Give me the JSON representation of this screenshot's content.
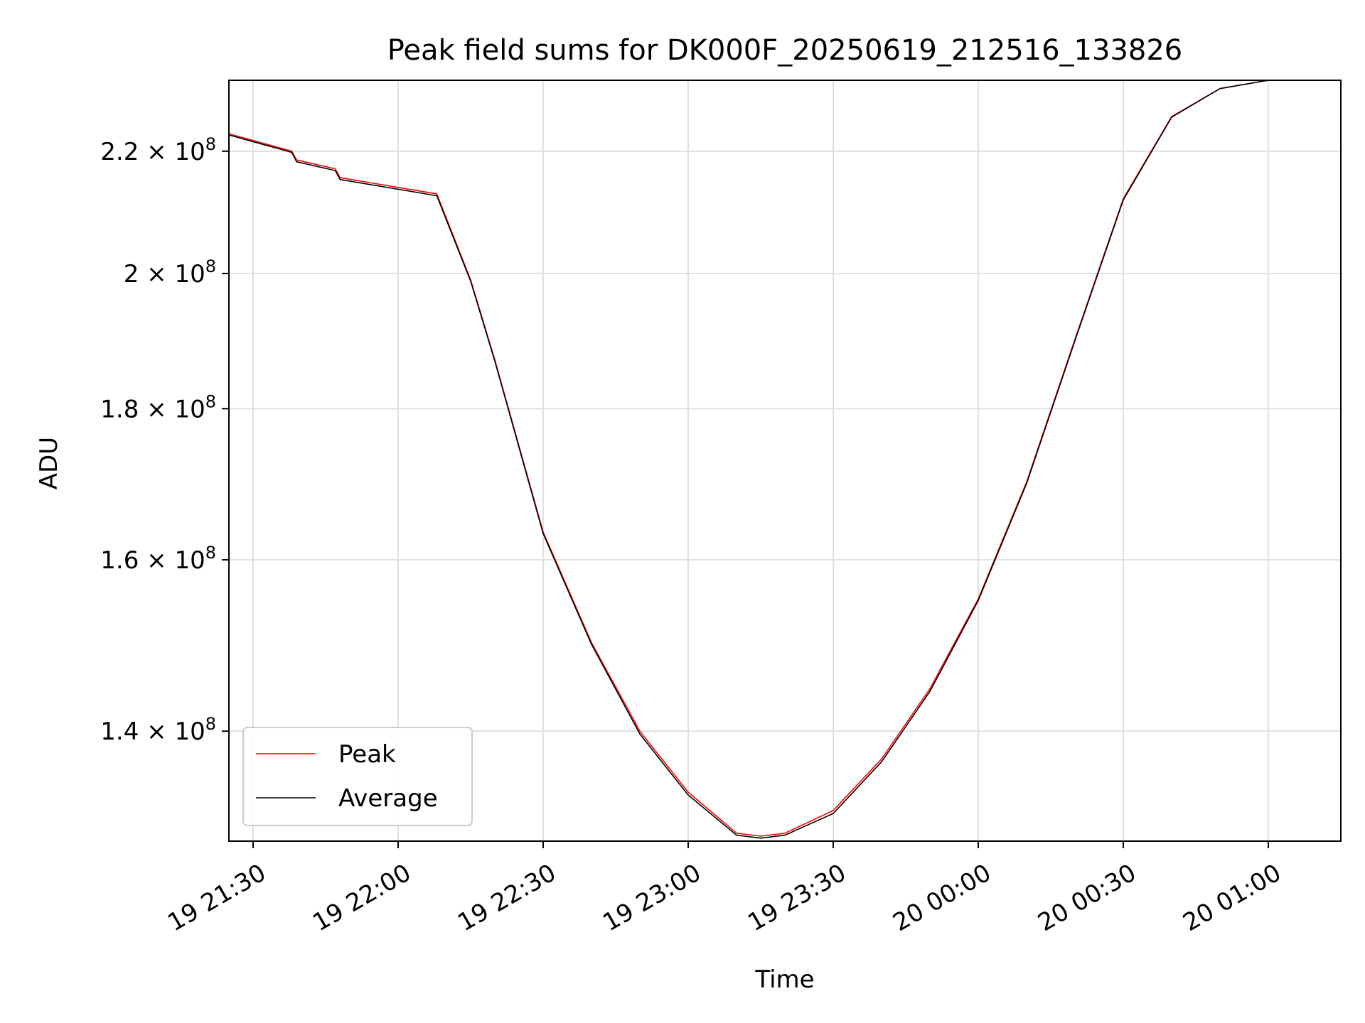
{
  "chart_data": {
    "type": "line",
    "title": "Peak field sums for DK000F_20250619_212516_133826",
    "xlabel": "Time",
    "ylabel": "ADU",
    "y_scale": "log",
    "grid": true,
    "legend_position": "lower left",
    "x_range": [
      "2025-06-19 21:25",
      "2025-06-20 01:15"
    ],
    "y_range": [
      128500000,
      232500000
    ],
    "x_tick_values": [
      "2025-06-19 21:30",
      "2025-06-19 22:00",
      "2025-06-19 22:30",
      "2025-06-19 23:00",
      "2025-06-19 23:30",
      "2025-06-20 00:00",
      "2025-06-20 00:30",
      "2025-06-20 01:00"
    ],
    "x_tick_labels": [
      "19 21:30",
      "19 22:00",
      "19 22:30",
      "19 23:00",
      "19 23:30",
      "20 00:00",
      "20 00:30",
      "20 01:00"
    ],
    "y_ticks": [
      {
        "value": 140000000,
        "mantissa": "1.4",
        "exponent": "8"
      },
      {
        "value": 160000000,
        "mantissa": "1.6",
        "exponent": "8"
      },
      {
        "value": 180000000,
        "mantissa": "1.8",
        "exponent": "8"
      },
      {
        "value": 200000000,
        "mantissa": "2",
        "exponent": "8"
      },
      {
        "value": 220000000,
        "mantissa": "2.2",
        "exponent": "8"
      }
    ],
    "x": [
      "2025-06-19 21:25",
      "2025-06-19 21:38",
      "2025-06-19 21:39",
      "2025-06-19 21:47",
      "2025-06-19 21:48",
      "2025-06-19 22:08",
      "2025-06-19 22:15",
      "2025-06-19 22:20",
      "2025-06-19 22:30",
      "2025-06-19 22:40",
      "2025-06-19 22:50",
      "2025-06-19 23:00",
      "2025-06-19 23:10",
      "2025-06-19 23:15",
      "2025-06-19 23:20",
      "2025-06-19 23:30",
      "2025-06-19 23:40",
      "2025-06-19 23:50",
      "2025-06-20 00:00",
      "2025-06-20 00:10",
      "2025-06-20 00:20",
      "2025-06-20 00:30",
      "2025-06-20 00:40",
      "2025-06-20 00:50",
      "2025-06-20 01:00",
      "2025-06-20 01:03"
    ],
    "series": [
      {
        "name": "Peak",
        "color": "#ff0000",
        "values": [
          223000000,
          220000000,
          218500000,
          217000000,
          215500000,
          212800000,
          199000000,
          187000000,
          163500000,
          150000000,
          140000000,
          133500000,
          129300000,
          129000000,
          129300000,
          131600000,
          137000000,
          144700000,
          155200000,
          170000000,
          190000000,
          212000000,
          226000000,
          231000000,
          232500000,
          232500000
        ]
      },
      {
        "name": "Average",
        "color": "#000000",
        "values": [
          222800000,
          219800000,
          218200000,
          216700000,
          215200000,
          212500000,
          198800000,
          186800000,
          163300000,
          149800000,
          139700000,
          133200000,
          129100000,
          128800000,
          129100000,
          131300000,
          136700000,
          144400000,
          155000000,
          169800000,
          189800000,
          211800000,
          225900000,
          231000000,
          232500000,
          232500000
        ]
      }
    ]
  }
}
